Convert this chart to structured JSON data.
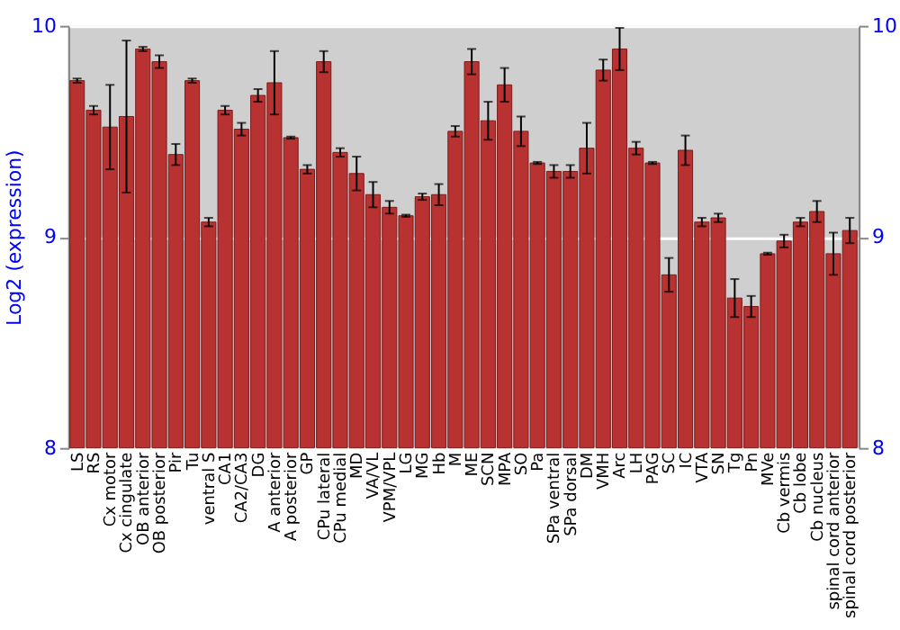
{
  "chart_data": {
    "type": "bar",
    "ylabel": "Log2 (expression)",
    "categories": [
      "LS",
      "RS",
      "Cx motor",
      "Cx cingulate",
      "OB anterior",
      "OB posterior",
      "Pir",
      "Tu",
      "ventral S",
      "CA1",
      "CA2/CA3",
      "DG",
      "A anterior",
      "A posterior",
      "GP",
      "CPu lateral",
      "CPu medial",
      "MD",
      "VA/VL",
      "VPM/VPL",
      "LG",
      "MG",
      "Hb",
      "M",
      "ME",
      "SCN",
      "MPA",
      "SO",
      "Pa",
      "SPa ventral",
      "SPa dorsal",
      "DM",
      "VMH",
      "Arc",
      "LH",
      "PAG",
      "SC",
      "IC",
      "VTA",
      "SN",
      "Tg",
      "Pn",
      "MVe",
      "Cb vermis",
      "Cb lobe",
      "Cb nucleus",
      "spinal cord anterior",
      "spinal cord posterior"
    ],
    "values": [
      9.74,
      9.6,
      9.52,
      9.57,
      9.89,
      9.83,
      9.39,
      9.74,
      9.07,
      9.6,
      9.51,
      9.67,
      9.73,
      9.47,
      9.32,
      9.83,
      9.4,
      9.3,
      9.2,
      9.14,
      9.1,
      9.19,
      9.2,
      9.5,
      9.83,
      9.55,
      9.72,
      9.5,
      9.35,
      9.31,
      9.31,
      9.42,
      9.79,
      9.89,
      9.42,
      9.35,
      8.82,
      9.41,
      9.07,
      9.09,
      8.71,
      8.67,
      8.92,
      8.98,
      9.07,
      9.12,
      8.92,
      9.03
    ],
    "errors": [
      0.01,
      0.02,
      0.2,
      0.36,
      0.01,
      0.03,
      0.05,
      0.01,
      0.02,
      0.02,
      0.03,
      0.03,
      0.15,
      0.005,
      0.02,
      0.05,
      0.02,
      0.08,
      0.06,
      0.03,
      0.005,
      0.015,
      0.05,
      0.025,
      0.06,
      0.09,
      0.08,
      0.07,
      0.005,
      0.03,
      0.03,
      0.12,
      0.05,
      0.1,
      0.03,
      0.005,
      0.08,
      0.07,
      0.02,
      0.02,
      0.09,
      0.05,
      0.005,
      0.03,
      0.02,
      0.05,
      0.1,
      0.06
    ],
    "color": "#b83232",
    "ylim": [
      8,
      10
    ],
    "yticks": [
      8,
      9,
      10
    ],
    "y2lim": [
      8,
      10
    ],
    "y2ticks": [
      8,
      9,
      10
    ],
    "grid": "y"
  }
}
